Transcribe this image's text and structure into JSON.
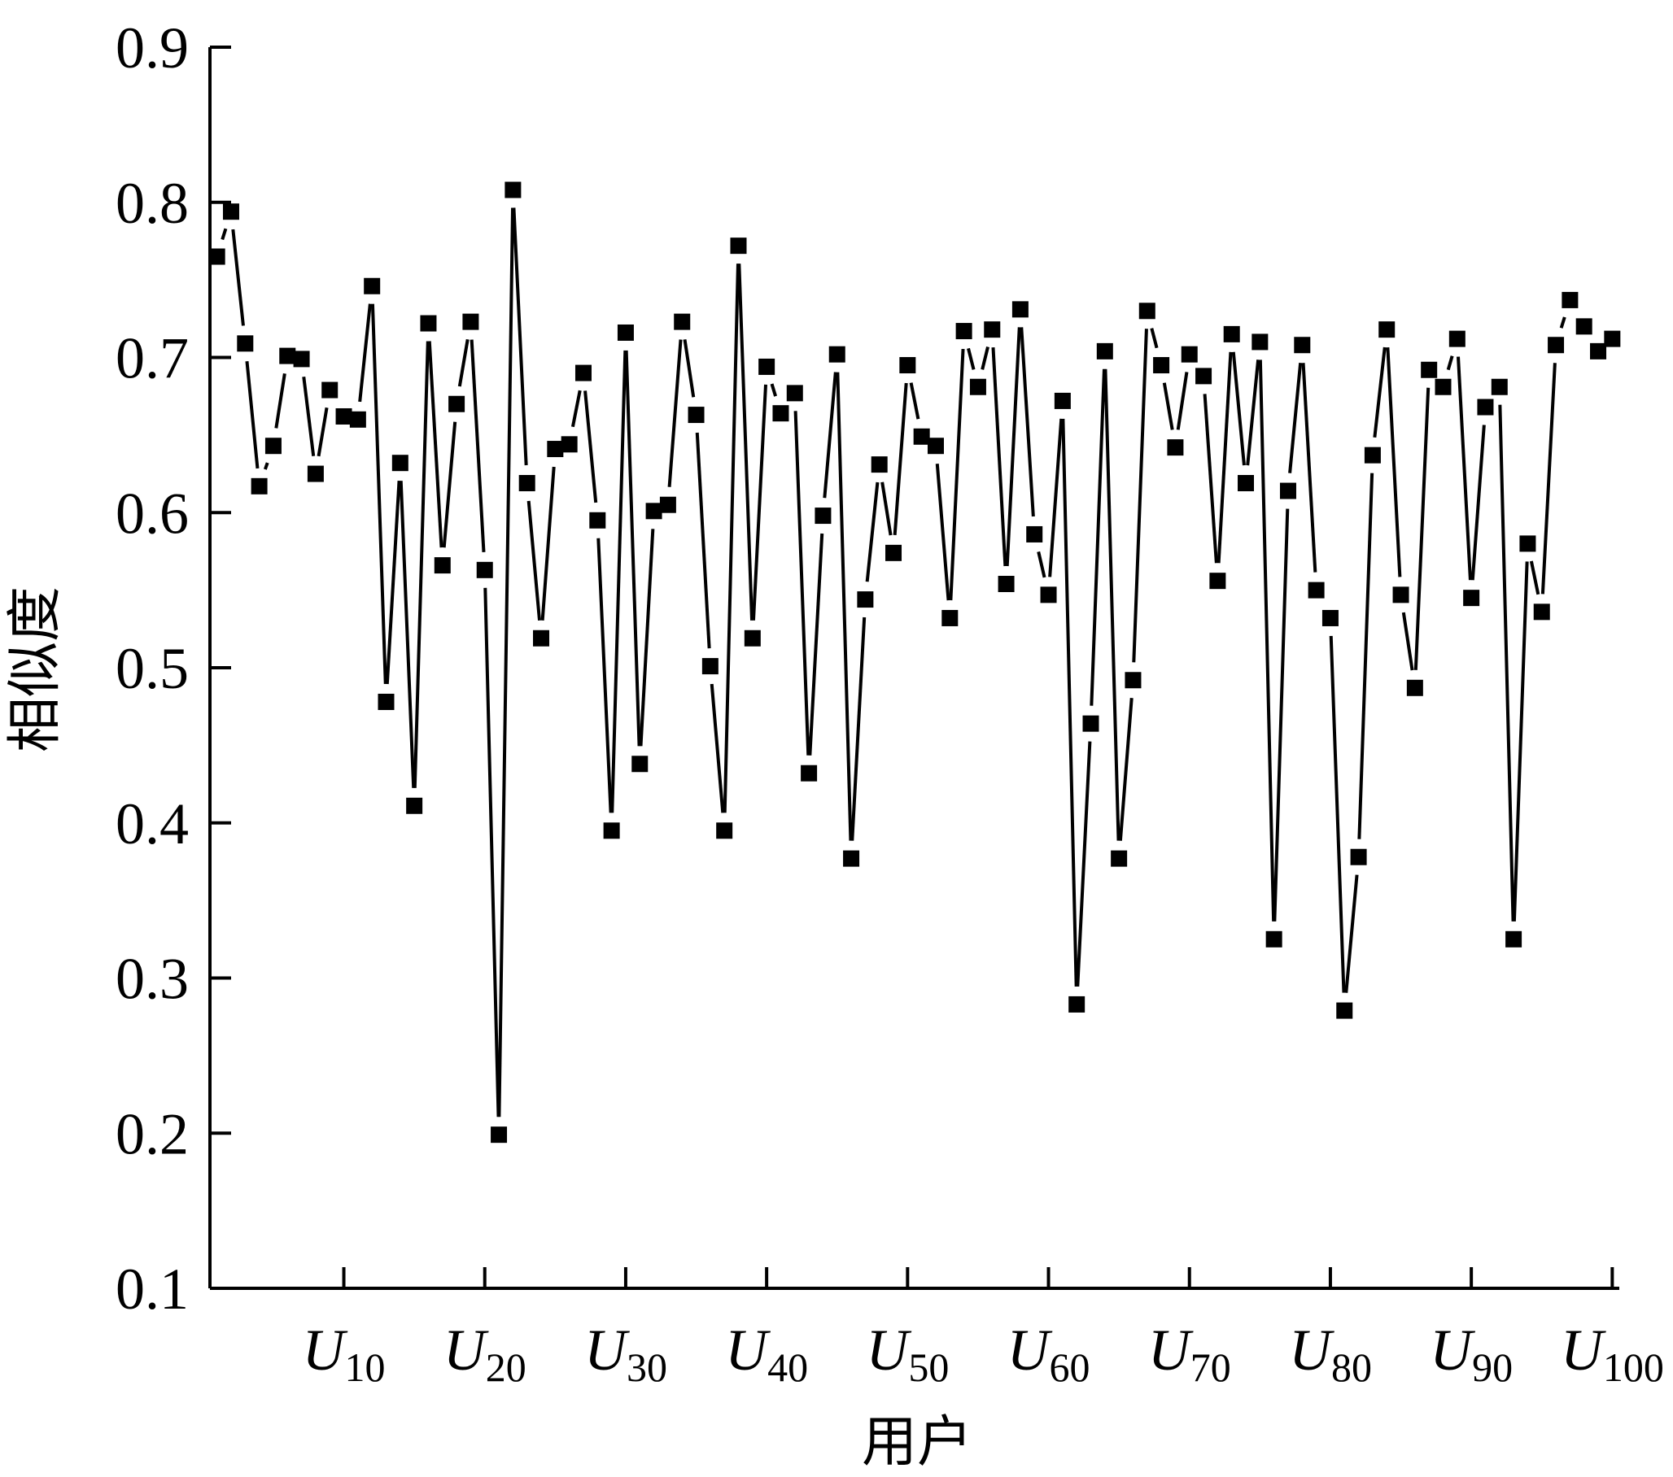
{
  "chart_data": {
    "type": "line",
    "title": "",
    "xlabel": "用户",
    "ylabel": "相似度",
    "ylim": [
      0.1,
      0.9
    ],
    "xlim": [
      0.5,
      100.5
    ],
    "yticks": [
      "0.9",
      "0.8",
      "0.7",
      "0.6",
      "0.5",
      "0.4",
      "0.3",
      "0.2",
      "0.1"
    ],
    "xticks": [
      {
        "base": "U",
        "sub": "10",
        "x": 10
      },
      {
        "base": "U",
        "sub": "20",
        "x": 20
      },
      {
        "base": "U",
        "sub": "30",
        "x": 30
      },
      {
        "base": "U",
        "sub": "40",
        "x": 40
      },
      {
        "base": "U",
        "sub": "50",
        "x": 50
      },
      {
        "base": "U",
        "sub": "60",
        "x": 60
      },
      {
        "base": "U",
        "sub": "70",
        "x": 70
      },
      {
        "base": "U",
        "sub": "80",
        "x": 80
      },
      {
        "base": "U",
        "sub": "90",
        "x": 90
      },
      {
        "base": "U",
        "sub": "100",
        "x": 100
      }
    ],
    "marker": "square",
    "color": "#000000",
    "grid": false,
    "series": [
      {
        "values": [
          0.765,
          0.794,
          0.709,
          0.617,
          0.643,
          0.701,
          0.699,
          0.625,
          0.679,
          0.662,
          0.66,
          0.746,
          0.478,
          0.632,
          0.411,
          0.722,
          0.566,
          0.67,
          0.723,
          0.563,
          0.199,
          0.808,
          0.619,
          0.519,
          0.641,
          0.644,
          0.69,
          0.595,
          0.395,
          0.716,
          0.438,
          0.601,
          0.605,
          0.723,
          0.663,
          0.501,
          0.395,
          0.772,
          0.519,
          0.694,
          0.664,
          0.677,
          0.432,
          0.598,
          0.702,
          0.377,
          0.544,
          0.631,
          0.574,
          0.695,
          0.649,
          0.643,
          0.532,
          0.717,
          0.681,
          0.718,
          0.554,
          0.731,
          0.586,
          0.547,
          0.672,
          0.283,
          0.464,
          0.704,
          0.377,
          0.492,
          0.73,
          0.695,
          0.642,
          0.702,
          0.688,
          0.556,
          0.715,
          0.619,
          0.71,
          0.325,
          0.614,
          0.708,
          0.55,
          0.532,
          0.279,
          0.378,
          0.637,
          0.718,
          0.547,
          0.487,
          0.692,
          0.681,
          0.712,
          0.545,
          0.668,
          0.681,
          0.325,
          0.58,
          0.536,
          0.708,
          0.737,
          0.72,
          0.704,
          0.712
        ]
      }
    ]
  }
}
